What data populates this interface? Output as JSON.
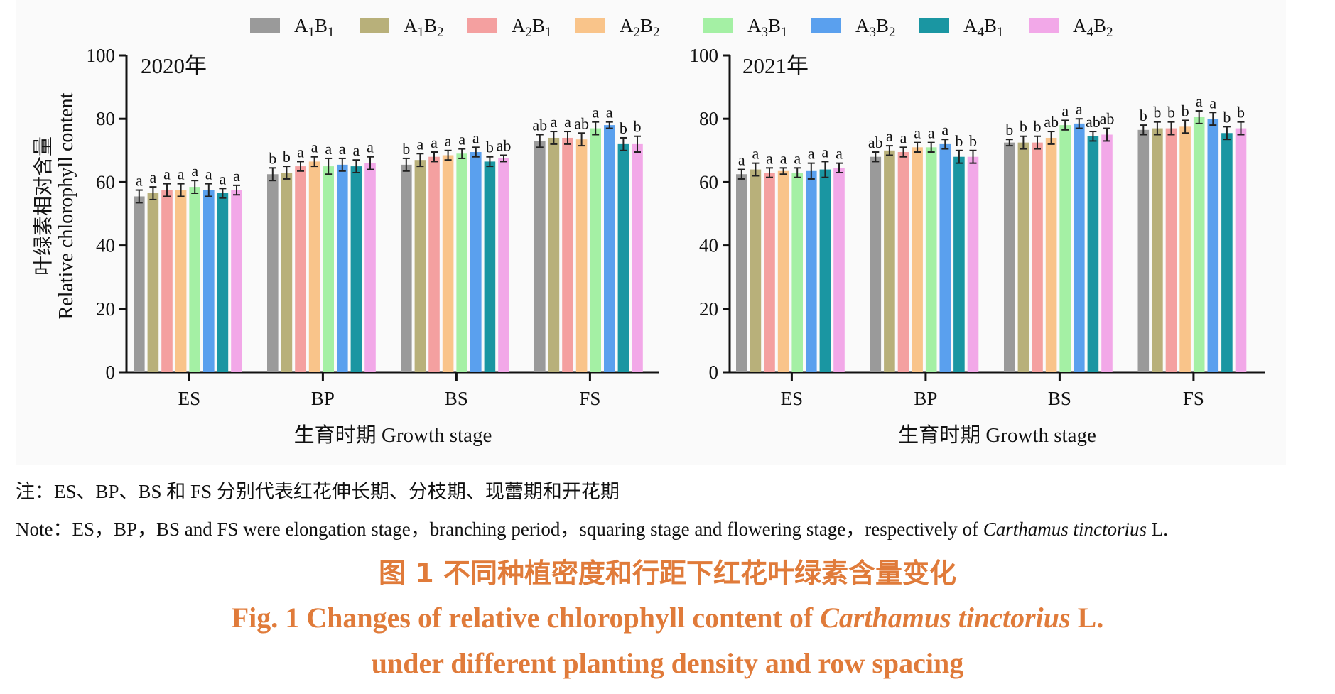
{
  "legend": [
    {
      "label_main": "A",
      "sub1": "1",
      "mid": "B",
      "sub2": "1",
      "color": "#9a9a9a"
    },
    {
      "label_main": "A",
      "sub1": "1",
      "mid": "B",
      "sub2": "2",
      "color": "#b8b07a"
    },
    {
      "label_main": "A",
      "sub1": "2",
      "mid": "B",
      "sub2": "1",
      "color": "#f4a0a0"
    },
    {
      "label_main": "A",
      "sub1": "2",
      "mid": "B",
      "sub2": "2",
      "color": "#f9c48a"
    },
    {
      "label_main": "A",
      "sub1": "3",
      "mid": "B",
      "sub2": "1",
      "color": "#a4f0a4"
    },
    {
      "label_main": "A",
      "sub1": "3",
      "mid": "B",
      "sub2": "2",
      "color": "#5aa0ee"
    },
    {
      "label_main": "A",
      "sub1": "4",
      "mid": "B",
      "sub2": "1",
      "color": "#1a96a2"
    },
    {
      "label_main": "A",
      "sub1": "4",
      "mid": "B",
      "sub2": "2",
      "color": "#f2a8e8"
    }
  ],
  "chart_data": [
    {
      "type": "bar",
      "panel_label": "2020年",
      "ylabel_cn": "叶绿素相对含量",
      "ylabel_en": "Relative chlorophyll content",
      "xlabel": "生育时期  Growth stage",
      "ylim": [
        0,
        100
      ],
      "yticks": [
        "0",
        "20",
        "40",
        "60",
        "80",
        "100"
      ],
      "categories": [
        "ES",
        "BP",
        "BS",
        "FS"
      ],
      "series": [
        {
          "name": "A1B1",
          "values": [
            55.5,
            62.5,
            65.5,
            73
          ],
          "errors": [
            2,
            2,
            2,
            2
          ],
          "letters": [
            "a",
            "b",
            "b",
            "ab"
          ]
        },
        {
          "name": "A1B2",
          "values": [
            56.5,
            63,
            67,
            74
          ],
          "errors": [
            2,
            2,
            2,
            2
          ],
          "letters": [
            "a",
            "b",
            "a",
            "a"
          ]
        },
        {
          "name": "A2B1",
          "values": [
            57.5,
            65,
            68,
            74
          ],
          "errors": [
            2,
            1.5,
            1.5,
            2
          ],
          "letters": [
            "a",
            "a",
            "a",
            "a"
          ]
        },
        {
          "name": "A2B2",
          "values": [
            57.5,
            66.5,
            68.5,
            73.5
          ],
          "errors": [
            2,
            1.5,
            1.5,
            2
          ],
          "letters": [
            "a",
            "a",
            "a",
            "ab"
          ]
        },
        {
          "name": "A3B1",
          "values": [
            58.5,
            65,
            69,
            77
          ],
          "errors": [
            2,
            2.5,
            1.5,
            2
          ],
          "letters": [
            "a",
            "a",
            "a",
            "a"
          ]
        },
        {
          "name": "A3B2",
          "values": [
            57.5,
            65.5,
            69.5,
            78
          ],
          "errors": [
            2,
            2,
            1.5,
            1
          ],
          "letters": [
            "a",
            "a",
            "a",
            "a"
          ]
        },
        {
          "name": "A4B1",
          "values": [
            56.5,
            65,
            66.5,
            72
          ],
          "errors": [
            1.5,
            2,
            1.5,
            2
          ],
          "letters": [
            "a",
            "a",
            "b",
            "b"
          ]
        },
        {
          "name": "A4B2",
          "values": [
            57.5,
            66,
            67.5,
            72
          ],
          "errors": [
            1.5,
            2,
            1,
            2.5
          ],
          "letters": [
            "a",
            "a",
            "ab",
            "b"
          ]
        }
      ]
    },
    {
      "type": "bar",
      "panel_label": "2021年",
      "xlabel": "生育时期  Growth stage",
      "ylim": [
        0,
        100
      ],
      "yticks": [
        "0",
        "20",
        "40",
        "60",
        "80",
        "100"
      ],
      "categories": [
        "ES",
        "BP",
        "BS",
        "FS"
      ],
      "series": [
        {
          "name": "A1B1",
          "values": [
            62.5,
            68,
            72.5,
            76.5
          ],
          "errors": [
            1.5,
            1.5,
            1,
            1.5
          ],
          "letters": [
            "a",
            "ab",
            "b",
            "b"
          ]
        },
        {
          "name": "A1B2",
          "values": [
            64,
            70,
            72.5,
            77
          ],
          "errors": [
            2,
            1.5,
            2,
            2
          ],
          "letters": [
            "a",
            "a",
            "b",
            "b"
          ]
        },
        {
          "name": "A2B1",
          "values": [
            63,
            69.5,
            72.5,
            77
          ],
          "errors": [
            1.5,
            1.5,
            2,
            2
          ],
          "letters": [
            "a",
            "a",
            "b",
            "b"
          ]
        },
        {
          "name": "A2B2",
          "values": [
            63.5,
            71,
            74,
            77.5
          ],
          "errors": [
            1,
            1.5,
            2,
            2
          ],
          "letters": [
            "a",
            "a",
            "ab",
            "b"
          ]
        },
        {
          "name": "A3B1",
          "values": [
            63,
            71,
            78,
            80.5
          ],
          "errors": [
            1.5,
            1.5,
            1.5,
            2
          ],
          "letters": [
            "a",
            "a",
            "a",
            "a"
          ]
        },
        {
          "name": "A3B2",
          "values": [
            63.5,
            72,
            78.5,
            80
          ],
          "errors": [
            2.5,
            1.5,
            1.5,
            2
          ],
          "letters": [
            "a",
            "a",
            "a",
            "a"
          ]
        },
        {
          "name": "A4B1",
          "values": [
            64,
            68,
            74.5,
            75.5
          ],
          "errors": [
            2.5,
            2,
            1.5,
            2
          ],
          "letters": [
            "a",
            "b",
            "ab",
            "b"
          ]
        },
        {
          "name": "A4B2",
          "values": [
            64.5,
            68,
            75,
            77
          ],
          "errors": [
            1.5,
            2,
            2,
            2
          ],
          "letters": [
            "a",
            "b",
            "ab",
            "b"
          ]
        }
      ]
    }
  ],
  "note_cn": "注：ES、BP、BS 和 FS 分别代表红花伸长期、分枝期、现蕾期和开花期",
  "note_en_prefix": "Note：ES，BP，BS and FS were elongation stage，branching period，squaring stage and flowering stage，respectively of ",
  "note_en_species": "Carthamus tinctorius",
  "note_en_suffix": " L.",
  "fig_title_cn": "图 1    不同种植密度和行距下红花叶绿素含量变化",
  "fig_title_en1_prefix": "Fig. 1    Changes of relative chlorophyll content of ",
  "fig_title_en1_species": "Carthamus tinctorius",
  "fig_title_en1_suffix": " L.",
  "fig_title_en2": "under different planting density and row spacing"
}
